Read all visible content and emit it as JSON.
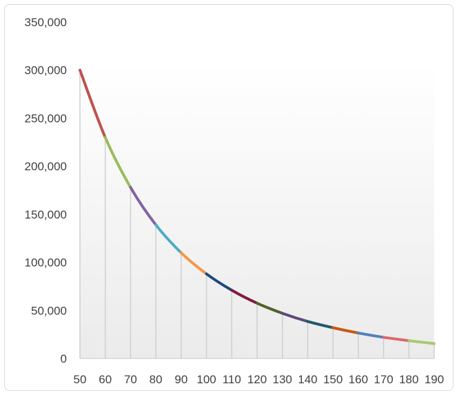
{
  "chart_data": {
    "type": "line",
    "title": "",
    "xlabel": "",
    "ylabel": "",
    "x": [
      50,
      60,
      70,
      80,
      90,
      100,
      110,
      120,
      130,
      140,
      150,
      160,
      170,
      180,
      190
    ],
    "values": [
      300000,
      230000,
      178000,
      139000,
      110000,
      88000,
      71000,
      57500,
      47000,
      38500,
      32000,
      26500,
      22000,
      18500,
      15500
    ],
    "x_tick_labels": [
      "50",
      "60",
      "70",
      "80",
      "90",
      "100",
      "110",
      "120",
      "130",
      "140",
      "150",
      "160",
      "170",
      "180",
      "190"
    ],
    "y_ticks": [
      0,
      50000,
      100000,
      150000,
      200000,
      250000,
      300000,
      350000
    ],
    "y_tick_labels": [
      "0",
      "50,000",
      "100,000",
      "150,000",
      "200,000",
      "250,000",
      "300,000",
      "350,000"
    ],
    "ylim": [
      0,
      350000
    ],
    "xlim": [
      50,
      190
    ],
    "grid": false,
    "drop_lines": true,
    "legend": "none",
    "segment_colors": [
      "#c0504d",
      "#9bbb59",
      "#8064a2",
      "#4bacc6",
      "#f79646",
      "#1f497d",
      "#7f1d3f",
      "#4f6228",
      "#5f497a",
      "#215968",
      "#c55a11",
      "#4f81bd",
      "#d9686a",
      "#a9c96f"
    ]
  }
}
